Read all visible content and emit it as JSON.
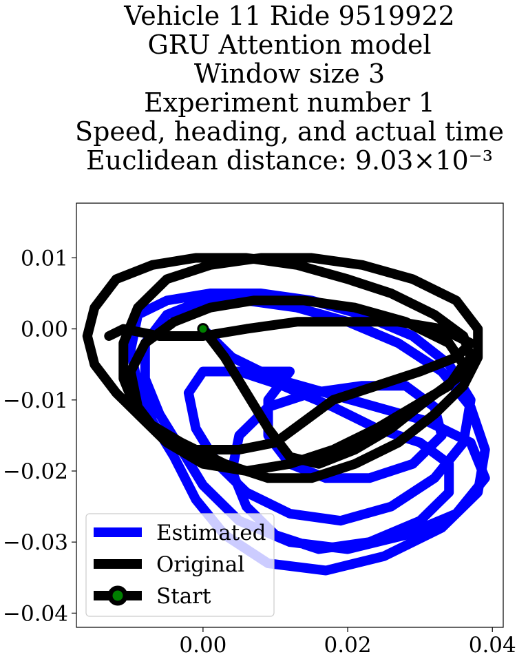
{
  "title_lines": [
    "Vehicle 11 Ride 9519922",
    "GRU Attention model",
    "Window size 3",
    "Experiment number 1",
    "Speed, heading, and actual time",
    "Euclidean distance: 9.03×10⁻³"
  ],
  "chart_data": {
    "type": "line",
    "title": "Vehicle 11 Ride 9519922 / GRU Attention model / Window size 3 / Experiment number 1 / Speed, heading, and actual time / Euclidean distance: 9.03×10⁻³",
    "xlabel": "",
    "ylabel": "",
    "xlim": [
      -0.0175,
      0.0415
    ],
    "ylim": [
      -0.042,
      0.0177
    ],
    "x_ticks": [
      "0.00",
      "0.02",
      "0.04"
    ],
    "x_tick_values": [
      0.0,
      0.02,
      0.04
    ],
    "y_ticks": [
      "0.01",
      "0.00",
      "−0.01",
      "−0.02",
      "−0.03",
      "−0.04"
    ],
    "y_tick_values": [
      0.01,
      0.0,
      -0.01,
      -0.02,
      -0.03,
      -0.04
    ],
    "grid": false,
    "legend_position": "lower-left",
    "series": [
      {
        "name": "Estimated",
        "color": "#0000ff",
        "points": [
          [
            0.0,
            0.0
          ],
          [
            0.004,
            -0.004
          ],
          [
            0.01,
            -0.007
          ],
          [
            0.017,
            -0.009
          ],
          [
            0.024,
            -0.011
          ],
          [
            0.031,
            -0.013
          ],
          [
            0.037,
            -0.016
          ],
          [
            0.039,
            -0.021
          ],
          [
            0.035,
            -0.026
          ],
          [
            0.028,
            -0.029
          ],
          [
            0.02,
            -0.031
          ],
          [
            0.012,
            -0.03
          ],
          [
            0.005,
            -0.027
          ],
          [
            0.0,
            -0.022
          ],
          [
            -0.003,
            -0.017
          ],
          [
            -0.006,
            -0.012
          ],
          [
            -0.008,
            -0.007
          ],
          [
            -0.008,
            -0.002
          ],
          [
            -0.005,
            0.002
          ],
          [
            0.0,
            0.004
          ],
          [
            0.006,
            0.004
          ],
          [
            0.013,
            0.003
          ],
          [
            0.02,
            0.001
          ],
          [
            0.027,
            -0.002
          ],
          [
            0.033,
            -0.006
          ],
          [
            0.037,
            -0.011
          ],
          [
            0.039,
            -0.017
          ],
          [
            0.038,
            -0.023
          ],
          [
            0.033,
            -0.028
          ],
          [
            0.025,
            -0.032
          ],
          [
            0.017,
            -0.034
          ],
          [
            0.009,
            -0.033
          ],
          [
            0.003,
            -0.029
          ],
          [
            -0.001,
            -0.024
          ],
          [
            -0.004,
            -0.018
          ],
          [
            -0.007,
            -0.013
          ],
          [
            -0.009,
            -0.008
          ],
          [
            -0.01,
            -0.003
          ],
          [
            -0.009,
            0.002
          ],
          [
            -0.005,
            0.004
          ],
          [
            0.001,
            0.005
          ],
          [
            0.008,
            0.005
          ],
          [
            0.015,
            0.004
          ],
          [
            0.022,
            0.002
          ],
          [
            0.029,
            -0.001
          ],
          [
            0.034,
            -0.005
          ],
          [
            0.037,
            -0.01
          ],
          [
            0.036,
            -0.016
          ],
          [
            0.032,
            -0.021
          ],
          [
            0.026,
            -0.025
          ],
          [
            0.019,
            -0.027
          ],
          [
            0.012,
            -0.026
          ],
          [
            0.006,
            -0.023
          ],
          [
            0.002,
            -0.019
          ],
          [
            -0.001,
            -0.014
          ],
          [
            -0.002,
            -0.009
          ],
          [
            0.0,
            -0.006
          ],
          [
            0.005,
            -0.006
          ],
          [
            0.011,
            -0.008
          ],
          [
            0.018,
            -0.011
          ],
          [
            0.024,
            -0.014
          ],
          [
            0.03,
            -0.016
          ],
          [
            0.034,
            -0.019
          ],
          [
            0.034,
            -0.023
          ],
          [
            0.03,
            -0.027
          ],
          [
            0.023,
            -0.03
          ],
          [
            0.016,
            -0.031
          ],
          [
            0.01,
            -0.029
          ],
          [
            0.006,
            -0.025
          ],
          [
            0.004,
            -0.02
          ],
          [
            0.005,
            -0.015
          ],
          [
            0.009,
            -0.011
          ],
          [
            0.015,
            -0.009
          ],
          [
            0.022,
            -0.008
          ],
          [
            0.028,
            -0.008
          ],
          [
            0.032,
            -0.011
          ],
          [
            0.033,
            -0.015
          ],
          [
            0.029,
            -0.019
          ],
          [
            0.023,
            -0.021
          ],
          [
            0.017,
            -0.021
          ],
          [
            0.012,
            -0.019
          ],
          [
            0.009,
            -0.015
          ],
          [
            0.009,
            -0.01
          ],
          [
            0.012,
            -0.006
          ],
          [
            0.006,
            -0.006
          ]
        ]
      },
      {
        "name": "Original",
        "color": "#000000",
        "points": [
          [
            0.0,
            0.0
          ],
          [
            0.003,
            -0.004
          ],
          [
            0.006,
            -0.009
          ],
          [
            0.009,
            -0.014
          ],
          [
            0.012,
            -0.018
          ],
          [
            0.016,
            -0.019
          ],
          [
            0.021,
            -0.017
          ],
          [
            0.026,
            -0.014
          ],
          [
            0.031,
            -0.01
          ],
          [
            0.035,
            -0.007
          ],
          [
            0.037,
            -0.004
          ],
          [
            0.036,
            -0.001
          ],
          [
            0.032,
            0.002
          ],
          [
            0.026,
            0.005
          ],
          [
            0.02,
            0.007
          ],
          [
            0.013,
            0.009
          ],
          [
            0.006,
            0.01
          ],
          [
            -0.001,
            0.01
          ],
          [
            -0.007,
            0.009
          ],
          [
            -0.012,
            0.007
          ],
          [
            -0.015,
            0.003
          ],
          [
            -0.016,
            -0.001
          ],
          [
            -0.015,
            -0.005
          ],
          [
            -0.012,
            -0.009
          ],
          [
            -0.008,
            -0.013
          ],
          [
            -0.003,
            -0.016
          ],
          [
            0.003,
            -0.019
          ],
          [
            0.009,
            -0.021
          ],
          [
            0.015,
            -0.021
          ],
          [
            0.021,
            -0.019
          ],
          [
            0.027,
            -0.016
          ],
          [
            0.032,
            -0.012
          ],
          [
            0.036,
            -0.008
          ],
          [
            0.038,
            -0.004
          ],
          [
            0.038,
            0.0
          ],
          [
            0.035,
            0.004
          ],
          [
            0.029,
            0.007
          ],
          [
            0.022,
            0.009
          ],
          [
            0.015,
            0.01
          ],
          [
            0.008,
            0.01
          ],
          [
            0.001,
            0.009
          ],
          [
            -0.005,
            0.007
          ],
          [
            -0.009,
            0.003
          ],
          [
            -0.011,
            -0.002
          ],
          [
            -0.011,
            -0.007
          ],
          [
            -0.009,
            -0.012
          ],
          [
            -0.005,
            -0.016
          ],
          [
            0.0,
            -0.019
          ],
          [
            0.006,
            -0.02
          ],
          [
            0.012,
            -0.019
          ],
          [
            0.018,
            -0.017
          ],
          [
            0.024,
            -0.014
          ],
          [
            0.029,
            -0.011
          ],
          [
            0.034,
            -0.008
          ],
          [
            0.036,
            -0.005
          ],
          [
            0.034,
            -0.002
          ],
          [
            0.028,
            0.001
          ],
          [
            0.021,
            0.003
          ],
          [
            0.014,
            0.004
          ],
          [
            0.007,
            0.004
          ],
          [
            0.001,
            0.003
          ],
          [
            -0.004,
            0.001
          ],
          [
            -0.008,
            -0.002
          ],
          [
            -0.01,
            -0.006
          ],
          [
            -0.009,
            -0.011
          ],
          [
            -0.006,
            -0.015
          ],
          [
            -0.001,
            -0.017
          ],
          [
            0.005,
            -0.017
          ],
          [
            0.01,
            -0.016
          ],
          [
            0.014,
            -0.013
          ],
          [
            0.018,
            -0.01
          ],
          [
            0.024,
            -0.008
          ],
          [
            0.03,
            -0.006
          ],
          [
            0.035,
            -0.004
          ],
          [
            0.037,
            -0.002
          ],
          [
            0.033,
            0.0
          ],
          [
            0.027,
            0.001
          ],
          [
            0.02,
            0.001
          ],
          [
            0.013,
            0.001
          ],
          [
            0.006,
            0.0
          ],
          [
            0.0,
            -0.001
          ],
          [
            -0.006,
            -0.001
          ],
          [
            -0.011,
            0.0
          ],
          [
            -0.013,
            -0.001
          ]
        ]
      }
    ],
    "start": {
      "name": "Start",
      "x": 0.0,
      "y": 0.0,
      "marker_color": "#008000",
      "marker_edge": "#000000"
    },
    "legend": [
      {
        "label": "Estimated",
        "color": "#0000ff",
        "marker": false
      },
      {
        "label": "Original",
        "color": "#000000",
        "marker": false
      },
      {
        "label": "Start",
        "color": "#000000",
        "marker": true
      }
    ]
  }
}
